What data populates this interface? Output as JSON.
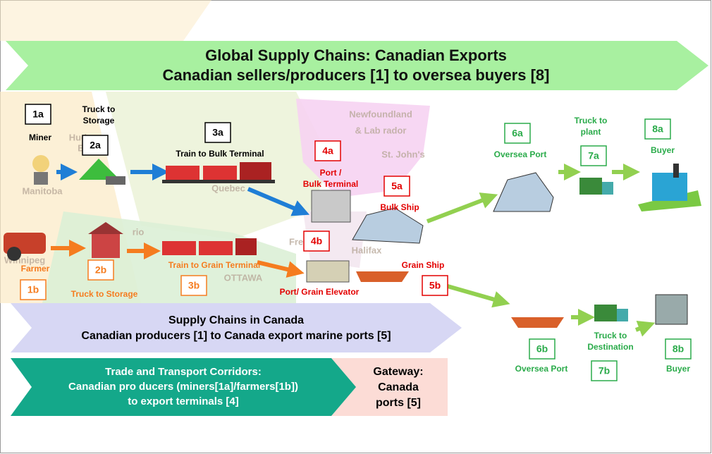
{
  "banner": {
    "line1": "Global Supply Chains: Canadian Exports",
    "line2": "Canadian sellers/producers [1] to oversea buyers [8]"
  },
  "nodes": [
    {
      "id": "1a",
      "caption": [
        "Miner"
      ]
    },
    {
      "id": "2a",
      "caption": [
        "Truck to",
        "Storage"
      ]
    },
    {
      "id": "3a",
      "caption": [
        "Train to Bulk Terminal"
      ]
    },
    {
      "id": "4a",
      "caption": [
        "Port /",
        "Bulk Terminal"
      ]
    },
    {
      "id": "5a",
      "caption": [
        "Bulk Ship"
      ]
    },
    {
      "id": "6a",
      "caption": [
        "Oversea Port"
      ]
    },
    {
      "id": "7a",
      "caption": [
        "Truck to",
        "plant"
      ]
    },
    {
      "id": "8a",
      "caption": [
        "Buyer"
      ]
    },
    {
      "id": "1b",
      "caption": [
        "Farmer"
      ]
    },
    {
      "id": "2b",
      "caption": [
        "Truck to Storage"
      ]
    },
    {
      "id": "3b",
      "caption": [
        "Train to Grain Terminal"
      ]
    },
    {
      "id": "4b",
      "caption": [
        "Port/ Grain Elevator"
      ]
    },
    {
      "id": "5b",
      "caption": [
        "Grain Ship"
      ]
    },
    {
      "id": "6b",
      "caption": [
        "Oversea Port"
      ]
    },
    {
      "id": "7b",
      "caption": [
        "Truck to",
        "Destination"
      ]
    },
    {
      "id": "8b",
      "caption": [
        "Buyer"
      ]
    }
  ],
  "bands": {
    "canada": [
      "Supply Chains in Canada",
      "Canadian producers [1] to Canada export marine ports [5]"
    ],
    "corridors": [
      "Trade and Transport Corridors:",
      "Canadian pro ducers (miners[1a]/farmers[1b])",
      "to export terminals [4]"
    ],
    "gateway": [
      "Gateway:",
      "Canada",
      "ports [5]"
    ]
  },
  "map_labels": [
    "Newfoundland",
    "& Lab rador",
    "St. John's",
    "Quebec",
    "Manitoba",
    "Hudson",
    "Bay",
    "OTTAWA",
    "Winnipeg",
    "Halifax",
    "Frederi",
    "rio"
  ]
}
